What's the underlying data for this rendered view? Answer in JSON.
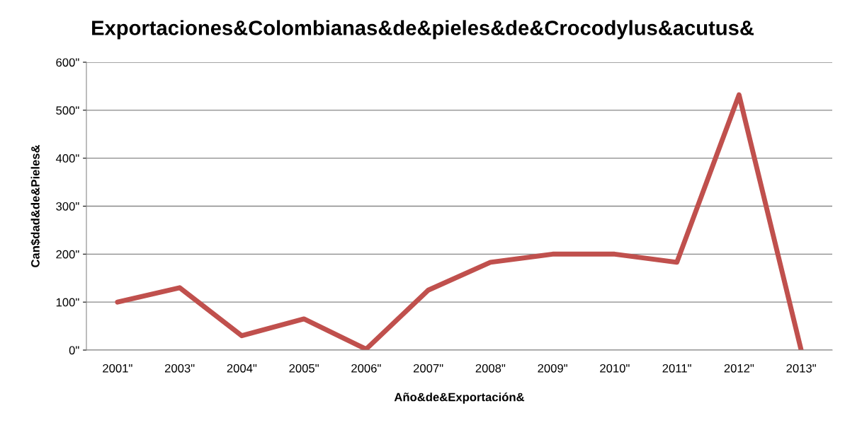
{
  "chart_data": {
    "type": "line",
    "title": "Exportaciones&Colombianas&de&pieles&de&Crocodylus&acutus&",
    "xlabel": "Año&de&Exportación&",
    "ylabel": "Can$dad&de&Pieles&",
    "categories": [
      "2001\"",
      "2003\"",
      "2004\"",
      "2005\"",
      "2006\"",
      "2007\"",
      "2008\"",
      "2009\"",
      "2010\"",
      "2011\"",
      "2012\"",
      "2013\""
    ],
    "series": [
      {
        "color": "#c0504d",
        "values": [
          100,
          130,
          30,
          65,
          2,
          125,
          183,
          200,
          200,
          183,
          532,
          0
        ]
      }
    ],
    "ylim": [
      0,
      600
    ],
    "yticks": [
      {
        "value": 0,
        "label": "0\""
      },
      {
        "value": 100,
        "label": "100\""
      },
      {
        "value": 200,
        "label": "200\""
      },
      {
        "value": 300,
        "label": "300\""
      },
      {
        "value": 400,
        "label": "400\""
      },
      {
        "value": 500,
        "label": "500\""
      },
      {
        "value": 600,
        "label": "600\""
      }
    ],
    "grid": "y",
    "legend": false,
    "marker": "none",
    "line_style": "solid"
  }
}
